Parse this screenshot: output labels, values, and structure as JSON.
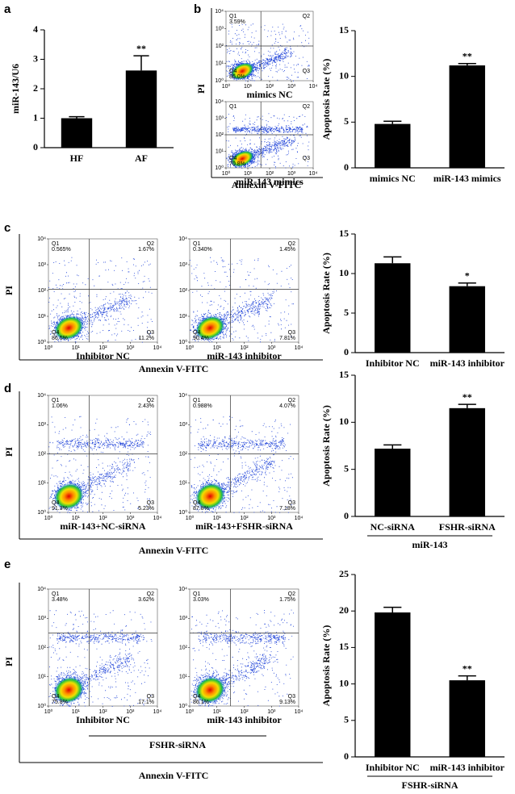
{
  "chart_data": [
    {
      "type": "bar",
      "panel": "a",
      "y_label": "miR-143/U6",
      "categories": [
        "HF",
        "AF"
      ],
      "values": [
        1.0,
        2.62
      ],
      "errors": [
        0.05,
        0.5
      ],
      "color": "#000000",
      "ylim": [
        0,
        4
      ],
      "yticks": [
        0,
        1,
        2,
        3,
        4
      ],
      "significance": [
        {
          "index": 1,
          "label": "**"
        }
      ]
    },
    {
      "type": "flow",
      "panel": "b",
      "x_label": "Annexin V-FITC",
      "y_label": "PI",
      "gate": [
        1.6,
        2.0
      ],
      "ticks": [
        {
          "value": 0,
          "label": "10⁰"
        },
        {
          "value": 1,
          "label": "10¹"
        },
        {
          "value": 2,
          "label": "10²"
        },
        {
          "value": 3,
          "label": "10³"
        },
        {
          "value": 4,
          "label": "10⁴"
        }
      ],
      "plots": [
        {
          "label": "mimics NC",
          "quadrants": [
            {
              "name": "Q1",
              "percent": {
                "value": 3.59,
                "label": "3.59%"
              }
            },
            {
              "name": "Q2"
            },
            {
              "name": "Q3"
            },
            {
              "name": "Q4",
              "percent": {
                "value": 86.0,
                "label": "86.0%"
              }
            }
          ]
        },
        {
          "label": "miR-143 mimics",
          "quadrants": [
            {
              "name": "Q1"
            },
            {
              "name": "Q2"
            },
            {
              "name": "Q3"
            },
            {
              "name": "Q4",
              "percent": {
                "value": 70.8,
                "label": "70.8%"
              }
            }
          ]
        }
      ]
    },
    {
      "type": "bar",
      "y_label": "Apoptosis Rate (%)",
      "categories": [
        "mimics NC",
        "miR-143 mimics"
      ],
      "values": [
        4.8,
        11.2
      ],
      "errors": [
        0.3,
        0.2
      ],
      "color": "#000000",
      "ylim": [
        0,
        15
      ],
      "yticks": [
        0,
        5,
        10,
        15
      ],
      "significance": [
        {
          "index": 1,
          "label": "**"
        }
      ]
    },
    {
      "type": "flow",
      "panel": "c",
      "x_label": "Annexin V-FITC",
      "y_label": "PI",
      "gate": [
        1.5,
        2.05
      ],
      "ticks": [
        {
          "value": 0,
          "label": "10⁰"
        },
        {
          "value": 1,
          "label": "10¹"
        },
        {
          "value": 2,
          "label": "10²"
        },
        {
          "value": 3,
          "label": "10³"
        },
        {
          "value": 4,
          "label": "10⁴"
        }
      ],
      "plots": [
        {
          "label": "Inhibitor NC",
          "quadrants": [
            {
              "name": "Q1",
              "percent": {
                "value": 0.565,
                "label": "0.565%"
              }
            },
            {
              "name": "Q2",
              "percent": {
                "value": 1.67,
                "label": "1.67%"
              }
            },
            {
              "name": "Q3",
              "percent": {
                "value": 11.2,
                "label": "11.2%"
              }
            },
            {
              "name": "Q4",
              "percent": {
                "value": 86.5,
                "label": "86.5%"
              }
            }
          ]
        },
        {
          "label": "miR-143 inhibitor",
          "quadrants": [
            {
              "name": "Q1",
              "percent": {
                "value": 0.34,
                "label": "0.340%"
              }
            },
            {
              "name": "Q2",
              "percent": {
                "value": 1.45,
                "label": "1.45%"
              }
            },
            {
              "name": "Q3",
              "percent": {
                "value": 7.81,
                "label": "7.81%"
              }
            },
            {
              "name": "Q4",
              "percent": {
                "value": 90.4,
                "label": "90.4%"
              }
            }
          ]
        }
      ]
    },
    {
      "type": "bar",
      "y_label": "Apoptosis Rate (%)",
      "categories": [
        "Inhibitor NC",
        "miR-143 inhibitor"
      ],
      "values": [
        11.3,
        8.4
      ],
      "errors": [
        0.8,
        0.4
      ],
      "color": "#000000",
      "ylim": [
        0,
        15
      ],
      "yticks": [
        0,
        5,
        10,
        15
      ],
      "significance": [
        {
          "index": 1,
          "label": "*"
        }
      ]
    },
    {
      "type": "flow",
      "panel": "d",
      "x_label": "Annexin V-FITC",
      "y_label": "PI",
      "gate": [
        1.5,
        2.0
      ],
      "ticks": [
        {
          "value": 0,
          "label": "10⁰"
        },
        {
          "value": 1,
          "label": "10¹"
        },
        {
          "value": 2,
          "label": "10²"
        },
        {
          "value": 3,
          "label": "10³"
        },
        {
          "value": 4,
          "label": "10⁴"
        }
      ],
      "plots": [
        {
          "label": "miR-143+NC-siRNA",
          "quadrants": [
            {
              "name": "Q1",
              "percent": {
                "value": 1.06,
                "label": "1.06%"
              }
            },
            {
              "name": "Q2",
              "percent": {
                "value": 2.43,
                "label": "2.43%"
              }
            },
            {
              "name": "Q3",
              "percent": {
                "value": 5.23,
                "label": "5.23%"
              }
            },
            {
              "name": "Q4",
              "percent": {
                "value": 91.3,
                "label": "91.3%"
              }
            }
          ]
        },
        {
          "label": "miR-143+FSHR-siRNA",
          "quadrants": [
            {
              "name": "Q1",
              "percent": {
                "value": 0.988,
                "label": "0.988%"
              }
            },
            {
              "name": "Q2",
              "percent": {
                "value": 4.07,
                "label": "4.07%"
              }
            },
            {
              "name": "Q3",
              "percent": {
                "value": 7.18,
                "label": "7.18%"
              }
            },
            {
              "name": "Q4",
              "percent": {
                "value": 87.8,
                "label": "87.8%"
              }
            }
          ]
        }
      ]
    },
    {
      "type": "bar",
      "y_label": "Apoptosis Rate (%)",
      "categories": [
        "NC-siRNA",
        "FSHR-siRNA"
      ],
      "values": [
        7.2,
        11.5
      ],
      "errors": [
        0.4,
        0.4
      ],
      "color": "#000000",
      "ylim": [
        0,
        15
      ],
      "yticks": [
        0,
        5,
        10,
        15
      ],
      "significance": [
        {
          "index": 1,
          "label": "**"
        }
      ],
      "group_label": "miR-143"
    },
    {
      "type": "flow",
      "panel": "e",
      "x_label": "Annexin V-FITC",
      "y_label": "PI",
      "group_label": "FSHR-siRNA",
      "gate": [
        1.5,
        2.5
      ],
      "ticks": [
        {
          "value": 0,
          "label": "10⁰"
        },
        {
          "value": 1,
          "label": "10¹"
        },
        {
          "value": 2,
          "label": "10²"
        },
        {
          "value": 3,
          "label": "10³"
        },
        {
          "value": 4,
          "label": "10⁴"
        }
      ],
      "plots": [
        {
          "label": "Inhibitor NC",
          "quadrants": [
            {
              "name": "Q1",
              "percent": {
                "value": 3.48,
                "label": "3.48%"
              }
            },
            {
              "name": "Q2",
              "percent": {
                "value": 3.62,
                "label": "3.62%"
              }
            },
            {
              "name": "Q3",
              "percent": {
                "value": 17.1,
                "label": "17.1%"
              }
            },
            {
              "name": "Q4",
              "percent": {
                "value": 75.8,
                "label": "75.8%"
              }
            }
          ]
        },
        {
          "label": "miR-143 inhibitor",
          "quadrants": [
            {
              "name": "Q1",
              "percent": {
                "value": 3.03,
                "label": "3.03%"
              }
            },
            {
              "name": "Q2",
              "percent": {
                "value": 1.75,
                "label": "1.75%"
              }
            },
            {
              "name": "Q3",
              "percent": {
                "value": 9.13,
                "label": "9.13%"
              }
            },
            {
              "name": "Q4",
              "percent": {
                "value": 86.1,
                "label": "86.1%"
              }
            }
          ]
        }
      ]
    },
    {
      "type": "bar",
      "y_label": "Apoptosis Rate (%)",
      "categories": [
        "Inhibitor NC",
        "miR-143 inhibitor"
      ],
      "values": [
        19.8,
        10.5
      ],
      "errors": [
        0.7,
        0.6
      ],
      "color": "#000000",
      "ylim": [
        0,
        25
      ],
      "yticks": [
        0,
        5,
        10,
        15,
        20,
        25
      ],
      "significance": [
        {
          "index": 1,
          "label": "**"
        }
      ],
      "group_label": "FSHR-siRNA"
    }
  ]
}
